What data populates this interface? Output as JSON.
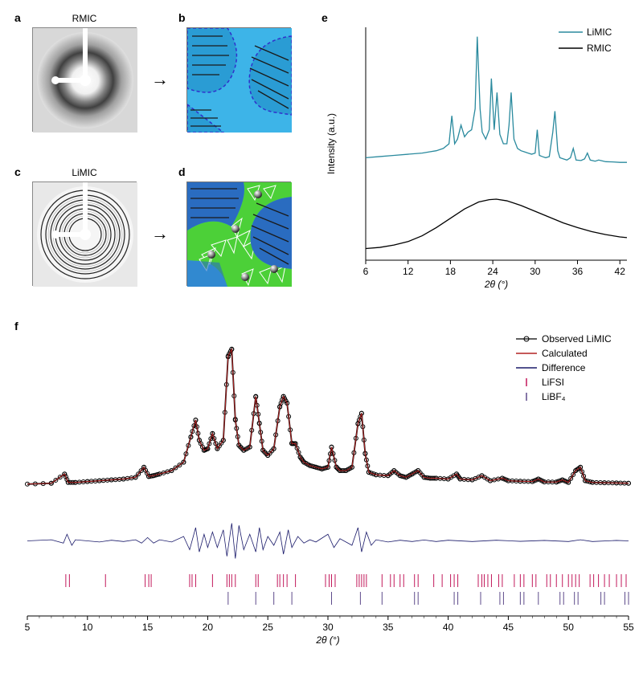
{
  "labels": {
    "a": "a",
    "b": "b",
    "c": "c",
    "d": "d",
    "e": "e",
    "f": "f",
    "rmic": "RMIC",
    "limic": "LiMIC"
  },
  "panel_e": {
    "xlabel": "2θ (°)",
    "ylabel": "Intensity (a.u.)",
    "xticks": [
      6,
      12,
      18,
      24,
      30,
      36,
      42
    ],
    "xlim": [
      6,
      43
    ],
    "ylim": [
      0,
      100
    ],
    "legend": [
      {
        "label": "LiMIC",
        "color": "#2a8a9e"
      },
      {
        "label": "RMIC",
        "color": "#000000"
      }
    ],
    "series": {
      "limic": {
        "color": "#2a8a9e",
        "stroke_width": 1.3,
        "baseline": 42,
        "points": [
          [
            6,
            44
          ],
          [
            8,
            44.5
          ],
          [
            10,
            45
          ],
          [
            12,
            45.5
          ],
          [
            14,
            46
          ],
          [
            15,
            46.5
          ],
          [
            16,
            47
          ],
          [
            17,
            48
          ],
          [
            17.8,
            50
          ],
          [
            18.2,
            62
          ],
          [
            18.6,
            50
          ],
          [
            19,
            52
          ],
          [
            19.5,
            58
          ],
          [
            20,
            53
          ],
          [
            20.5,
            55
          ],
          [
            21,
            56
          ],
          [
            21.5,
            65
          ],
          [
            21.8,
            96
          ],
          [
            22.2,
            65
          ],
          [
            22.5,
            55
          ],
          [
            23,
            52
          ],
          [
            23.5,
            56
          ],
          [
            23.8,
            78
          ],
          [
            24.2,
            56
          ],
          [
            24.6,
            72
          ],
          [
            25,
            54
          ],
          [
            25.5,
            50
          ],
          [
            26,
            50
          ],
          [
            26.3,
            58
          ],
          [
            26.6,
            72
          ],
          [
            27,
            52
          ],
          [
            27.5,
            48
          ],
          [
            28,
            47
          ],
          [
            28.5,
            46.5
          ],
          [
            29,
            46
          ],
          [
            29.5,
            45.5
          ],
          [
            30,
            46
          ],
          [
            30.3,
            56
          ],
          [
            30.6,
            45
          ],
          [
            31,
            44.5
          ],
          [
            31.5,
            44
          ],
          [
            32,
            44.5
          ],
          [
            32.5,
            55
          ],
          [
            32.8,
            64
          ],
          [
            33.2,
            47
          ],
          [
            33.5,
            44
          ],
          [
            34,
            43.5
          ],
          [
            34.5,
            43
          ],
          [
            35,
            44
          ],
          [
            35.4,
            48
          ],
          [
            35.8,
            43
          ],
          [
            36.5,
            42.8
          ],
          [
            37,
            43.5
          ],
          [
            37.4,
            46
          ],
          [
            37.8,
            43
          ],
          [
            38.5,
            42.5
          ],
          [
            39,
            43
          ],
          [
            40,
            42.3
          ],
          [
            41,
            42.2
          ],
          [
            42,
            42
          ],
          [
            43,
            42
          ]
        ]
      },
      "rmic": {
        "color": "#000000",
        "stroke_width": 1.3,
        "points": [
          [
            6,
            5
          ],
          [
            8,
            5.5
          ],
          [
            10,
            6.5
          ],
          [
            12,
            8
          ],
          [
            14,
            10.5
          ],
          [
            16,
            14
          ],
          [
            18,
            18
          ],
          [
            20,
            22
          ],
          [
            22,
            25
          ],
          [
            23.5,
            26
          ],
          [
            24.5,
            26.2
          ],
          [
            26,
            25.5
          ],
          [
            28,
            23.5
          ],
          [
            30,
            21
          ],
          [
            32,
            18.5
          ],
          [
            34,
            16
          ],
          [
            36,
            14
          ],
          [
            38,
            12.3
          ],
          [
            40,
            11
          ],
          [
            42,
            10
          ],
          [
            43,
            9.7
          ]
        ]
      }
    },
    "label_fontsize": 12,
    "background_color": "#ffffff"
  },
  "panel_f": {
    "xlabel": "2θ (°)",
    "xticks": [
      5,
      10,
      15,
      20,
      25,
      30,
      35,
      40,
      45,
      50,
      55
    ],
    "xlim": [
      5,
      55
    ],
    "legend": [
      {
        "label": "Observed LiMIC",
        "color": "#000000",
        "type": "marker"
      },
      {
        "label": "Calculated",
        "color": "#b22222",
        "type": "line"
      },
      {
        "label": "Difference",
        "color": "#1a1a6a",
        "type": "line"
      },
      {
        "label": "LiFSI",
        "color": "#c2185b",
        "type": "tick"
      },
      {
        "label": "LiBF₄",
        "color": "#5e4b8b",
        "type": "tick"
      }
    ],
    "main_ylim": [
      0,
      100
    ],
    "diff_ylim": [
      -10,
      10
    ],
    "observed": {
      "color": "#000000",
      "marker": "circle",
      "marker_size": 2.5,
      "stroke_width": 1.8
    },
    "calculated": {
      "color": "#b22222",
      "stroke_width": 1.0,
      "points": [
        [
          5,
          12
        ],
        [
          7,
          12.5
        ],
        [
          8.1,
          18
        ],
        [
          8.4,
          13
        ],
        [
          9,
          13
        ],
        [
          10,
          13.5
        ],
        [
          11,
          14
        ],
        [
          12,
          14.5
        ],
        [
          13,
          15
        ],
        [
          14,
          16
        ],
        [
          14.7,
          22
        ],
        [
          15.1,
          16.5
        ],
        [
          15.5,
          17
        ],
        [
          16,
          18
        ],
        [
          17,
          20
        ],
        [
          18,
          25
        ],
        [
          18.6,
          40
        ],
        [
          19,
          50
        ],
        [
          19.3,
          38
        ],
        [
          19.7,
          32
        ],
        [
          20,
          33
        ],
        [
          20.4,
          42
        ],
        [
          20.8,
          33
        ],
        [
          21.3,
          38
        ],
        [
          21.7,
          88
        ],
        [
          22,
          92
        ],
        [
          22.3,
          50
        ],
        [
          22.6,
          35
        ],
        [
          23,
          32
        ],
        [
          23.5,
          34
        ],
        [
          24,
          64
        ],
        [
          24.3,
          48
        ],
        [
          24.6,
          32
        ],
        [
          25,
          29
        ],
        [
          25.5,
          33
        ],
        [
          26,
          58
        ],
        [
          26.3,
          64
        ],
        [
          26.6,
          60
        ],
        [
          27,
          36
        ],
        [
          27.3,
          36
        ],
        [
          27.7,
          28
        ],
        [
          28,
          25
        ],
        [
          28.5,
          23
        ],
        [
          29,
          22
        ],
        [
          29.5,
          21
        ],
        [
          30,
          22
        ],
        [
          30.3,
          34
        ],
        [
          30.7,
          22
        ],
        [
          31,
          20
        ],
        [
          31.5,
          20
        ],
        [
          32,
          22
        ],
        [
          32.5,
          48
        ],
        [
          32.8,
          54
        ],
        [
          33.1,
          30
        ],
        [
          33.4,
          19
        ],
        [
          34,
          17.5
        ],
        [
          35,
          17
        ],
        [
          35.5,
          20
        ],
        [
          36,
          17
        ],
        [
          36.5,
          16
        ],
        [
          37,
          18
        ],
        [
          37.5,
          20
        ],
        [
          38,
          16
        ],
        [
          38.5,
          15.5
        ],
        [
          39,
          15.5
        ],
        [
          40,
          15
        ],
        [
          40.7,
          18
        ],
        [
          41,
          15
        ],
        [
          42,
          14.5
        ],
        [
          42.8,
          17
        ],
        [
          43.5,
          14
        ],
        [
          44.5,
          15.5
        ],
        [
          45,
          14
        ],
        [
          46,
          13.7
        ],
        [
          47,
          13.5
        ],
        [
          47.5,
          15
        ],
        [
          48,
          13.3
        ],
        [
          49,
          13.2
        ],
        [
          49.5,
          14.5
        ],
        [
          50,
          13
        ],
        [
          50.6,
          20
        ],
        [
          51,
          22
        ],
        [
          51.4,
          14
        ],
        [
          52,
          13
        ],
        [
          53,
          12.8
        ],
        [
          54,
          12.7
        ],
        [
          55,
          12.5
        ]
      ]
    },
    "difference": {
      "color": "#1a1a6a",
      "stroke_width": 0.8,
      "baseline_y": 0,
      "points": [
        [
          5,
          0
        ],
        [
          7,
          0.5
        ],
        [
          8,
          -1
        ],
        [
          8.3,
          3
        ],
        [
          8.7,
          -2
        ],
        [
          9,
          0.5
        ],
        [
          10,
          0
        ],
        [
          11,
          -0.5
        ],
        [
          12,
          0.3
        ],
        [
          13,
          -0.3
        ],
        [
          14,
          0.5
        ],
        [
          14.5,
          -1
        ],
        [
          15,
          1.5
        ],
        [
          15.5,
          -1
        ],
        [
          16,
          0.5
        ],
        [
          17,
          -0.5
        ],
        [
          18,
          2
        ],
        [
          18.5,
          -4
        ],
        [
          19,
          6
        ],
        [
          19.3,
          -5
        ],
        [
          19.7,
          3
        ],
        [
          20,
          -3
        ],
        [
          20.4,
          4
        ],
        [
          20.8,
          -3
        ],
        [
          21.3,
          5
        ],
        [
          21.6,
          -7
        ],
        [
          22,
          8
        ],
        [
          22.3,
          -8
        ],
        [
          22.6,
          7
        ],
        [
          23,
          -4
        ],
        [
          23.5,
          3
        ],
        [
          24,
          -5
        ],
        [
          24.3,
          6
        ],
        [
          24.6,
          -4
        ],
        [
          25,
          2
        ],
        [
          25.5,
          -2
        ],
        [
          26,
          4
        ],
        [
          26.3,
          -6
        ],
        [
          26.7,
          5
        ],
        [
          27,
          -3
        ],
        [
          27.5,
          2
        ],
        [
          28,
          -1
        ],
        [
          28.5,
          0.5
        ],
        [
          29,
          -0.5
        ],
        [
          30,
          3
        ],
        [
          30.5,
          -3
        ],
        [
          31,
          1
        ],
        [
          32,
          -2
        ],
        [
          32.5,
          6
        ],
        [
          32.8,
          -5
        ],
        [
          33.2,
          4
        ],
        [
          33.6,
          -2
        ],
        [
          34,
          0.5
        ],
        [
          35,
          -0.5
        ],
        [
          36,
          0.3
        ],
        [
          37,
          -0.3
        ],
        [
          38,
          0.4
        ],
        [
          39,
          -0.3
        ],
        [
          40,
          0.3
        ],
        [
          42,
          -0.3
        ],
        [
          44,
          0.3
        ],
        [
          46,
          -0.2
        ],
        [
          48,
          0.2
        ],
        [
          50,
          -0.3
        ],
        [
          51,
          0.5
        ],
        [
          52,
          -0.3
        ],
        [
          54,
          0.2
        ],
        [
          55,
          0
        ]
      ]
    },
    "lifsi_ticks": {
      "color": "#c2185b",
      "positions": [
        8.2,
        8.5,
        11.5,
        14.8,
        15.1,
        15.3,
        18.5,
        18.7,
        19.0,
        20.4,
        21.6,
        21.8,
        22.0,
        22.3,
        24.0,
        24.2,
        25.8,
        26.0,
        26.3,
        26.6,
        27.3,
        29.8,
        30.1,
        30.3,
        30.6,
        32.4,
        32.6,
        32.8,
        33.0,
        33.2,
        34.5,
        35.2,
        35.5,
        36.0,
        36.3,
        37.2,
        37.5,
        38.8,
        39.5,
        40.2,
        40.5,
        40.8,
        42.5,
        42.8,
        43.0,
        43.3,
        43.6,
        44.2,
        44.5,
        45.5,
        46.0,
        46.3,
        47.0,
        47.3,
        48.2,
        48.5,
        49.0,
        49.5,
        50.0,
        50.3,
        50.6,
        50.9,
        51.8,
        52.1,
        52.5,
        53.0,
        53.4,
        54.0,
        54.4,
        54.8
      ]
    },
    "libf4_ticks": {
      "color": "#5e4b8b",
      "positions": [
        21.7,
        24.0,
        25.5,
        27.0,
        30.3,
        32.7,
        34.5,
        37.2,
        37.5,
        40.5,
        40.8,
        42.7,
        44.3,
        44.6,
        46.0,
        46.3,
        47.5,
        49.3,
        49.6,
        50.5,
        50.8,
        52.7,
        53.0,
        54.7,
        55.0
      ]
    },
    "label_fontsize": 12,
    "background_color": "#ffffff"
  },
  "schematic": {
    "b": {
      "bg_color": "#3db4e8",
      "region_fill": "#2a9cd4",
      "dash_color": "#3030cc",
      "line_color": "#1a1a1a"
    },
    "d": {
      "bg_color": "#3db4e8",
      "region_fill": "#2a6cc0",
      "crystal_color": "#4cd038",
      "crystal_edge": "#ffffff",
      "line_color": "#1a1a1a",
      "sphere_light": "#f5f5f5",
      "sphere_dark": "#333333"
    }
  },
  "diffraction": {
    "a": {
      "has_rings": false
    },
    "c": {
      "has_rings": true
    }
  }
}
